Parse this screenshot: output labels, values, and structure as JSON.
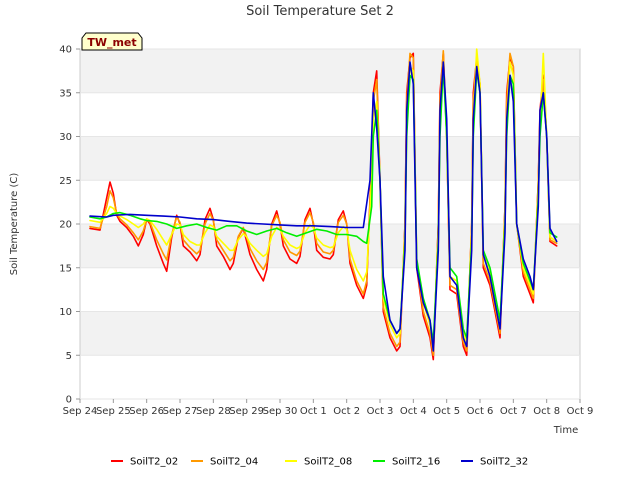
{
  "chart_data": {
    "type": "line",
    "title": "Soil Temperature Set 2",
    "xlabel": "Time",
    "ylabel": "Soil Temperature (C)",
    "badge": "TW_met",
    "ylim": [
      0,
      40
    ],
    "yticks": [
      0,
      5,
      10,
      15,
      20,
      25,
      30,
      35,
      40
    ],
    "xlim_days": [
      0,
      15
    ],
    "xticks": [
      "Sep 24",
      "Sep 25",
      "Sep 26",
      "Sep 27",
      "Sep 28",
      "Sep 29",
      "Sep 30",
      "Oct 1",
      "Oct 2",
      "Oct 3",
      "Oct 4",
      "Oct 5",
      "Oct 6",
      "Oct 7",
      "Oct 8",
      "Oct 9"
    ],
    "grid_bands": true,
    "legend_position": "bottom",
    "series": [
      {
        "name": "SoilT2_02",
        "color": "#ff0000",
        "x": [
          0.3,
          0.6,
          0.8,
          0.9,
          1.0,
          1.1,
          1.2,
          1.4,
          1.6,
          1.75,
          1.9,
          2.0,
          2.1,
          2.3,
          2.5,
          2.6,
          2.75,
          2.9,
          3.0,
          3.1,
          3.3,
          3.5,
          3.6,
          3.75,
          3.9,
          4.0,
          4.1,
          4.3,
          4.5,
          4.6,
          4.75,
          4.9,
          5.0,
          5.1,
          5.3,
          5.5,
          5.6,
          5.75,
          5.9,
          6.0,
          6.1,
          6.3,
          6.5,
          6.6,
          6.75,
          6.9,
          7.0,
          7.1,
          7.3,
          7.5,
          7.6,
          7.75,
          7.9,
          8.0,
          8.1,
          8.3,
          8.5,
          8.6,
          8.75,
          8.8,
          8.9,
          9.0,
          9.1,
          9.3,
          9.5,
          9.6,
          9.75,
          9.8,
          9.9,
          10.0,
          10.1,
          10.3,
          10.5,
          10.6,
          10.75,
          10.8,
          10.9,
          11.0,
          11.1,
          11.3,
          11.5,
          11.6,
          11.75,
          11.8,
          11.9,
          12.0,
          12.1,
          12.3,
          12.5,
          12.6,
          12.75,
          12.8,
          12.9,
          13.0,
          13.1,
          13.3,
          13.5,
          13.6,
          13.75,
          13.8,
          13.9,
          14.0,
          14.1,
          14.3
        ],
        "values": [
          19.5,
          19.3,
          23.0,
          24.8,
          23.5,
          21.0,
          20.3,
          19.6,
          18.6,
          17.5,
          18.8,
          20.5,
          20.0,
          17.5,
          15.5,
          14.6,
          18.5,
          21.0,
          20.0,
          17.5,
          16.8,
          15.8,
          16.5,
          20.5,
          21.8,
          20.5,
          17.5,
          16.3,
          14.8,
          15.5,
          18.5,
          19.5,
          18.0,
          16.5,
          14.8,
          13.5,
          14.8,
          20.0,
          21.5,
          20.0,
          17.5,
          16.0,
          15.5,
          16.3,
          20.5,
          21.8,
          20.0,
          17.0,
          16.2,
          16.0,
          16.5,
          20.5,
          21.5,
          20.0,
          15.5,
          13.0,
          11.5,
          13.0,
          28.0,
          35.0,
          37.5,
          25.0,
          10.0,
          7.0,
          5.5,
          6.0,
          20.0,
          35.0,
          39.0,
          39.5,
          15.0,
          9.5,
          7.0,
          4.5,
          20.0,
          35.0,
          39.5,
          30.0,
          12.5,
          12.0,
          6.0,
          5.0,
          20.0,
          35.0,
          39.0,
          36.0,
          15.0,
          13.0,
          9.0,
          7.0,
          22.0,
          35.0,
          39.0,
          38.0,
          20.0,
          14.0,
          12.0,
          11.0,
          25.0,
          33.0,
          37.0,
          30.0,
          18.0,
          17.5
        ]
      },
      {
        "name": "SoilT2_04",
        "color": "#ff9900",
        "x": [
          0.3,
          0.6,
          0.8,
          0.9,
          1.0,
          1.1,
          1.2,
          1.4,
          1.6,
          1.75,
          1.9,
          2.0,
          2.1,
          2.3,
          2.5,
          2.6,
          2.75,
          2.9,
          3.0,
          3.1,
          3.3,
          3.5,
          3.6,
          3.75,
          3.9,
          4.0,
          4.1,
          4.3,
          4.5,
          4.6,
          4.75,
          4.9,
          5.0,
          5.1,
          5.3,
          5.5,
          5.6,
          5.75,
          5.9,
          6.0,
          6.1,
          6.3,
          6.5,
          6.6,
          6.75,
          6.9,
          7.0,
          7.1,
          7.3,
          7.5,
          7.6,
          7.75,
          7.9,
          8.0,
          8.1,
          8.3,
          8.5,
          8.6,
          8.75,
          8.8,
          8.9,
          9.0,
          9.1,
          9.3,
          9.5,
          9.6,
          9.75,
          9.8,
          9.9,
          10.0,
          10.1,
          10.3,
          10.5,
          10.6,
          10.75,
          10.8,
          10.9,
          11.0,
          11.1,
          11.3,
          11.5,
          11.6,
          11.75,
          11.8,
          11.9,
          12.0,
          12.1,
          12.3,
          12.5,
          12.6,
          12.75,
          12.8,
          12.9,
          13.0,
          13.1,
          13.3,
          13.5,
          13.6,
          13.75,
          13.8,
          13.9,
          14.0,
          14.1,
          14.3
        ],
        "values": [
          19.7,
          19.5,
          22.0,
          23.8,
          23.0,
          21.2,
          20.6,
          19.9,
          19.0,
          18.2,
          19.2,
          20.5,
          20.2,
          18.2,
          16.6,
          15.9,
          18.8,
          20.8,
          20.2,
          18.2,
          17.3,
          16.6,
          17.0,
          20.0,
          21.2,
          20.4,
          18.2,
          17.0,
          15.8,
          16.2,
          18.6,
          19.6,
          18.5,
          17.2,
          15.8,
          14.8,
          15.6,
          19.8,
          21.0,
          20.2,
          18.2,
          16.8,
          16.4,
          16.9,
          20.2,
          21.3,
          20.2,
          17.8,
          16.8,
          16.6,
          17.0,
          20.2,
          21.0,
          20.0,
          16.0,
          13.5,
          12.0,
          13.5,
          27.0,
          34.0,
          36.5,
          25.0,
          10.5,
          7.5,
          6.0,
          6.5,
          20.0,
          34.0,
          39.5,
          39.0,
          15.5,
          10.0,
          7.5,
          5.0,
          20.0,
          34.0,
          39.8,
          30.0,
          13.0,
          12.5,
          6.5,
          5.5,
          20.0,
          34.0,
          38.5,
          36.0,
          15.5,
          13.5,
          9.5,
          7.5,
          22.0,
          34.0,
          39.5,
          38.0,
          20.0,
          14.5,
          12.5,
          11.5,
          25.0,
          32.0,
          36.5,
          30.0,
          18.2,
          17.8
        ]
      },
      {
        "name": "SoilT2_08",
        "color": "#ffff00",
        "x": [
          0.3,
          0.6,
          0.8,
          0.9,
          1.0,
          1.1,
          1.2,
          1.4,
          1.6,
          1.75,
          1.9,
          2.0,
          2.1,
          2.3,
          2.5,
          2.6,
          2.75,
          2.9,
          3.0,
          3.1,
          3.3,
          3.5,
          3.6,
          3.75,
          3.9,
          4.0,
          4.1,
          4.3,
          4.5,
          4.6,
          4.75,
          4.9,
          5.0,
          5.1,
          5.3,
          5.5,
          5.6,
          5.75,
          5.9,
          6.0,
          6.1,
          6.3,
          6.5,
          6.6,
          6.75,
          6.9,
          7.0,
          7.1,
          7.3,
          7.5,
          7.6,
          7.75,
          7.9,
          8.0,
          8.1,
          8.3,
          8.5,
          8.6,
          8.75,
          8.8,
          8.9,
          9.0,
          9.1,
          9.3,
          9.5,
          9.6,
          9.75,
          9.8,
          9.9,
          10.0,
          10.1,
          10.3,
          10.5,
          10.6,
          10.75,
          10.8,
          10.9,
          11.0,
          11.1,
          11.3,
          11.5,
          11.6,
          11.75,
          11.8,
          11.9,
          12.0,
          12.1,
          12.3,
          12.5,
          12.6,
          12.75,
          12.8,
          12.9,
          13.0,
          13.1,
          13.3,
          13.5,
          13.6,
          13.75,
          13.8,
          13.9,
          14.0,
          14.1,
          14.3
        ],
        "values": [
          20.4,
          20.2,
          21.2,
          22.0,
          21.8,
          21.2,
          20.9,
          20.5,
          20.0,
          19.6,
          20.0,
          20.6,
          20.4,
          19.4,
          18.2,
          17.6,
          18.8,
          20.0,
          19.9,
          18.8,
          18.0,
          17.6,
          17.6,
          19.0,
          19.9,
          19.7,
          18.6,
          17.8,
          17.0,
          17.0,
          18.2,
          18.9,
          18.5,
          17.8,
          17.0,
          16.3,
          16.6,
          18.6,
          19.6,
          19.4,
          18.6,
          17.6,
          17.2,
          17.4,
          19.0,
          19.9,
          19.6,
          18.4,
          17.6,
          17.3,
          17.4,
          19.0,
          19.7,
          19.4,
          17.0,
          14.8,
          13.5,
          14.5,
          25.0,
          32.0,
          34.0,
          25.0,
          11.5,
          8.5,
          7.0,
          7.5,
          19.0,
          32.0,
          38.0,
          37.5,
          16.0,
          11.0,
          8.5,
          6.0,
          19.0,
          32.0,
          38.5,
          30.0,
          14.0,
          13.5,
          7.5,
          6.5,
          19.0,
          32.0,
          40.0,
          36.0,
          16.5,
          14.5,
          10.5,
          8.5,
          21.0,
          32.0,
          38.5,
          37.0,
          20.0,
          15.0,
          13.0,
          12.0,
          24.0,
          31.0,
          39.5,
          30.0,
          18.5,
          18.0
        ]
      },
      {
        "name": "SoilT2_16",
        "color": "#00ee00",
        "x": [
          0.3,
          0.6,
          0.8,
          1.0,
          1.2,
          1.5,
          1.8,
          2.0,
          2.3,
          2.6,
          2.9,
          3.2,
          3.5,
          3.8,
          4.1,
          4.4,
          4.7,
          5.0,
          5.3,
          5.6,
          5.9,
          6.2,
          6.5,
          6.8,
          7.1,
          7.4,
          7.7,
          8.0,
          8.3,
          8.5,
          8.6,
          8.75,
          8.8,
          8.9,
          9.0,
          9.1,
          9.3,
          9.5,
          9.6,
          9.75,
          9.8,
          9.9,
          10.0,
          10.1,
          10.3,
          10.5,
          10.6,
          10.75,
          10.8,
          10.9,
          11.0,
          11.1,
          11.3,
          11.5,
          11.6,
          11.75,
          11.8,
          11.9,
          12.0,
          12.1,
          12.3,
          12.5,
          12.6,
          12.75,
          12.8,
          12.9,
          13.0,
          13.1,
          13.3,
          13.5,
          13.6,
          13.75,
          13.8,
          13.9,
          14.0,
          14.1,
          14.3
        ],
        "values": [
          20.8,
          20.6,
          20.8,
          21.2,
          21.3,
          21.0,
          20.6,
          20.4,
          20.3,
          20.0,
          19.5,
          19.8,
          20.0,
          19.6,
          19.3,
          19.8,
          19.8,
          19.2,
          18.8,
          19.2,
          19.5,
          19.0,
          18.6,
          19.0,
          19.4,
          19.2,
          18.8,
          18.8,
          18.6,
          18.0,
          17.8,
          22.0,
          30.0,
          33.0,
          25.0,
          12.0,
          9.0,
          7.5,
          8.0,
          18.0,
          30.0,
          37.0,
          36.5,
          16.0,
          11.5,
          9.0,
          6.5,
          18.0,
          30.0,
          38.0,
          30.0,
          15.0,
          14.0,
          8.0,
          7.0,
          18.0,
          30.0,
          37.5,
          35.0,
          17.0,
          15.0,
          11.0,
          9.0,
          20.0,
          30.0,
          37.0,
          36.0,
          20.0,
          15.5,
          13.5,
          12.5,
          23.0,
          30.0,
          35.0,
          30.0,
          19.0,
          18.5
        ]
      },
      {
        "name": "SoilT2_32",
        "color": "#0000cc",
        "x": [
          0.3,
          0.8,
          1.0,
          1.5,
          2.0,
          2.5,
          3.0,
          3.5,
          4.0,
          4.5,
          5.0,
          5.5,
          6.0,
          6.5,
          7.0,
          7.5,
          8.0,
          8.5,
          8.7,
          8.8,
          8.9,
          9.0,
          9.1,
          9.3,
          9.5,
          9.6,
          9.75,
          9.8,
          9.9,
          10.0,
          10.1,
          10.3,
          10.5,
          10.6,
          10.75,
          10.8,
          10.9,
          11.0,
          11.1,
          11.3,
          11.5,
          11.6,
          11.75,
          11.8,
          11.9,
          12.0,
          12.1,
          12.3,
          12.5,
          12.6,
          12.75,
          12.8,
          12.9,
          13.0,
          13.1,
          13.3,
          13.5,
          13.6,
          13.75,
          13.8,
          13.9,
          14.0,
          14.1,
          14.3
        ],
        "values": [
          20.9,
          20.8,
          21.0,
          21.1,
          21.0,
          20.9,
          20.8,
          20.6,
          20.5,
          20.3,
          20.1,
          20.0,
          19.9,
          19.8,
          19.8,
          19.7,
          19.6,
          19.6,
          25.0,
          35.0,
          31.0,
          25.0,
          14.0,
          9.0,
          7.5,
          8.0,
          17.0,
          33.0,
          38.5,
          36.0,
          15.0,
          11.0,
          9.0,
          5.5,
          17.0,
          33.0,
          38.5,
          32.0,
          14.0,
          13.0,
          7.0,
          6.0,
          17.0,
          32.0,
          38.0,
          35.0,
          16.5,
          14.0,
          10.0,
          8.0,
          19.0,
          32.0,
          37.0,
          34.0,
          20.0,
          16.0,
          14.0,
          12.5,
          22.0,
          33.0,
          35.0,
          30.0,
          19.5,
          18.0
        ]
      }
    ]
  }
}
